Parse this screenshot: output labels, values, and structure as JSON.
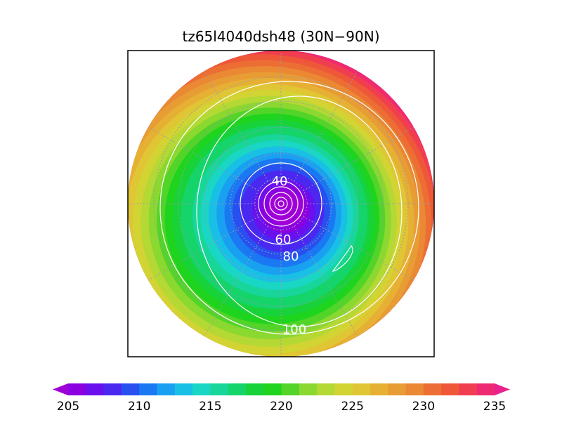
{
  "title": "tz65l4040dsh48 (30N−90N)",
  "map": {
    "projection": "north polar stereographic",
    "lat_range": [
      30,
      90
    ],
    "fill_variable_range": [
      205,
      235
    ],
    "contour_labels": [
      "40",
      "60",
      "80",
      "100"
    ],
    "graticule": "dotted gray",
    "colors": {
      "border": "#000000",
      "contour": "#ffffff",
      "graticule": "#9a9ab0"
    }
  },
  "colorbar": {
    "min": 205,
    "max": 235,
    "step": 1.25,
    "tick_labels": [
      "205",
      "210",
      "215",
      "220",
      "225",
      "230",
      "235"
    ],
    "extend": "both",
    "colors": [
      "#a000d8",
      "#8a00e0",
      "#6a10ee",
      "#4a28f0",
      "#2850f0",
      "#1a78f2",
      "#1aa0f0",
      "#18c0e6",
      "#1ad6c4",
      "#18d69a",
      "#14d46a",
      "#18d23a",
      "#1ed41e",
      "#52d428",
      "#8ad830",
      "#b4d834",
      "#d2d434",
      "#e0c634",
      "#e6b034",
      "#e89c34",
      "#ea8834",
      "#ec6e34",
      "#ee5838",
      "#f03e50",
      "#ee2a72",
      "#e8228c"
    ]
  }
}
